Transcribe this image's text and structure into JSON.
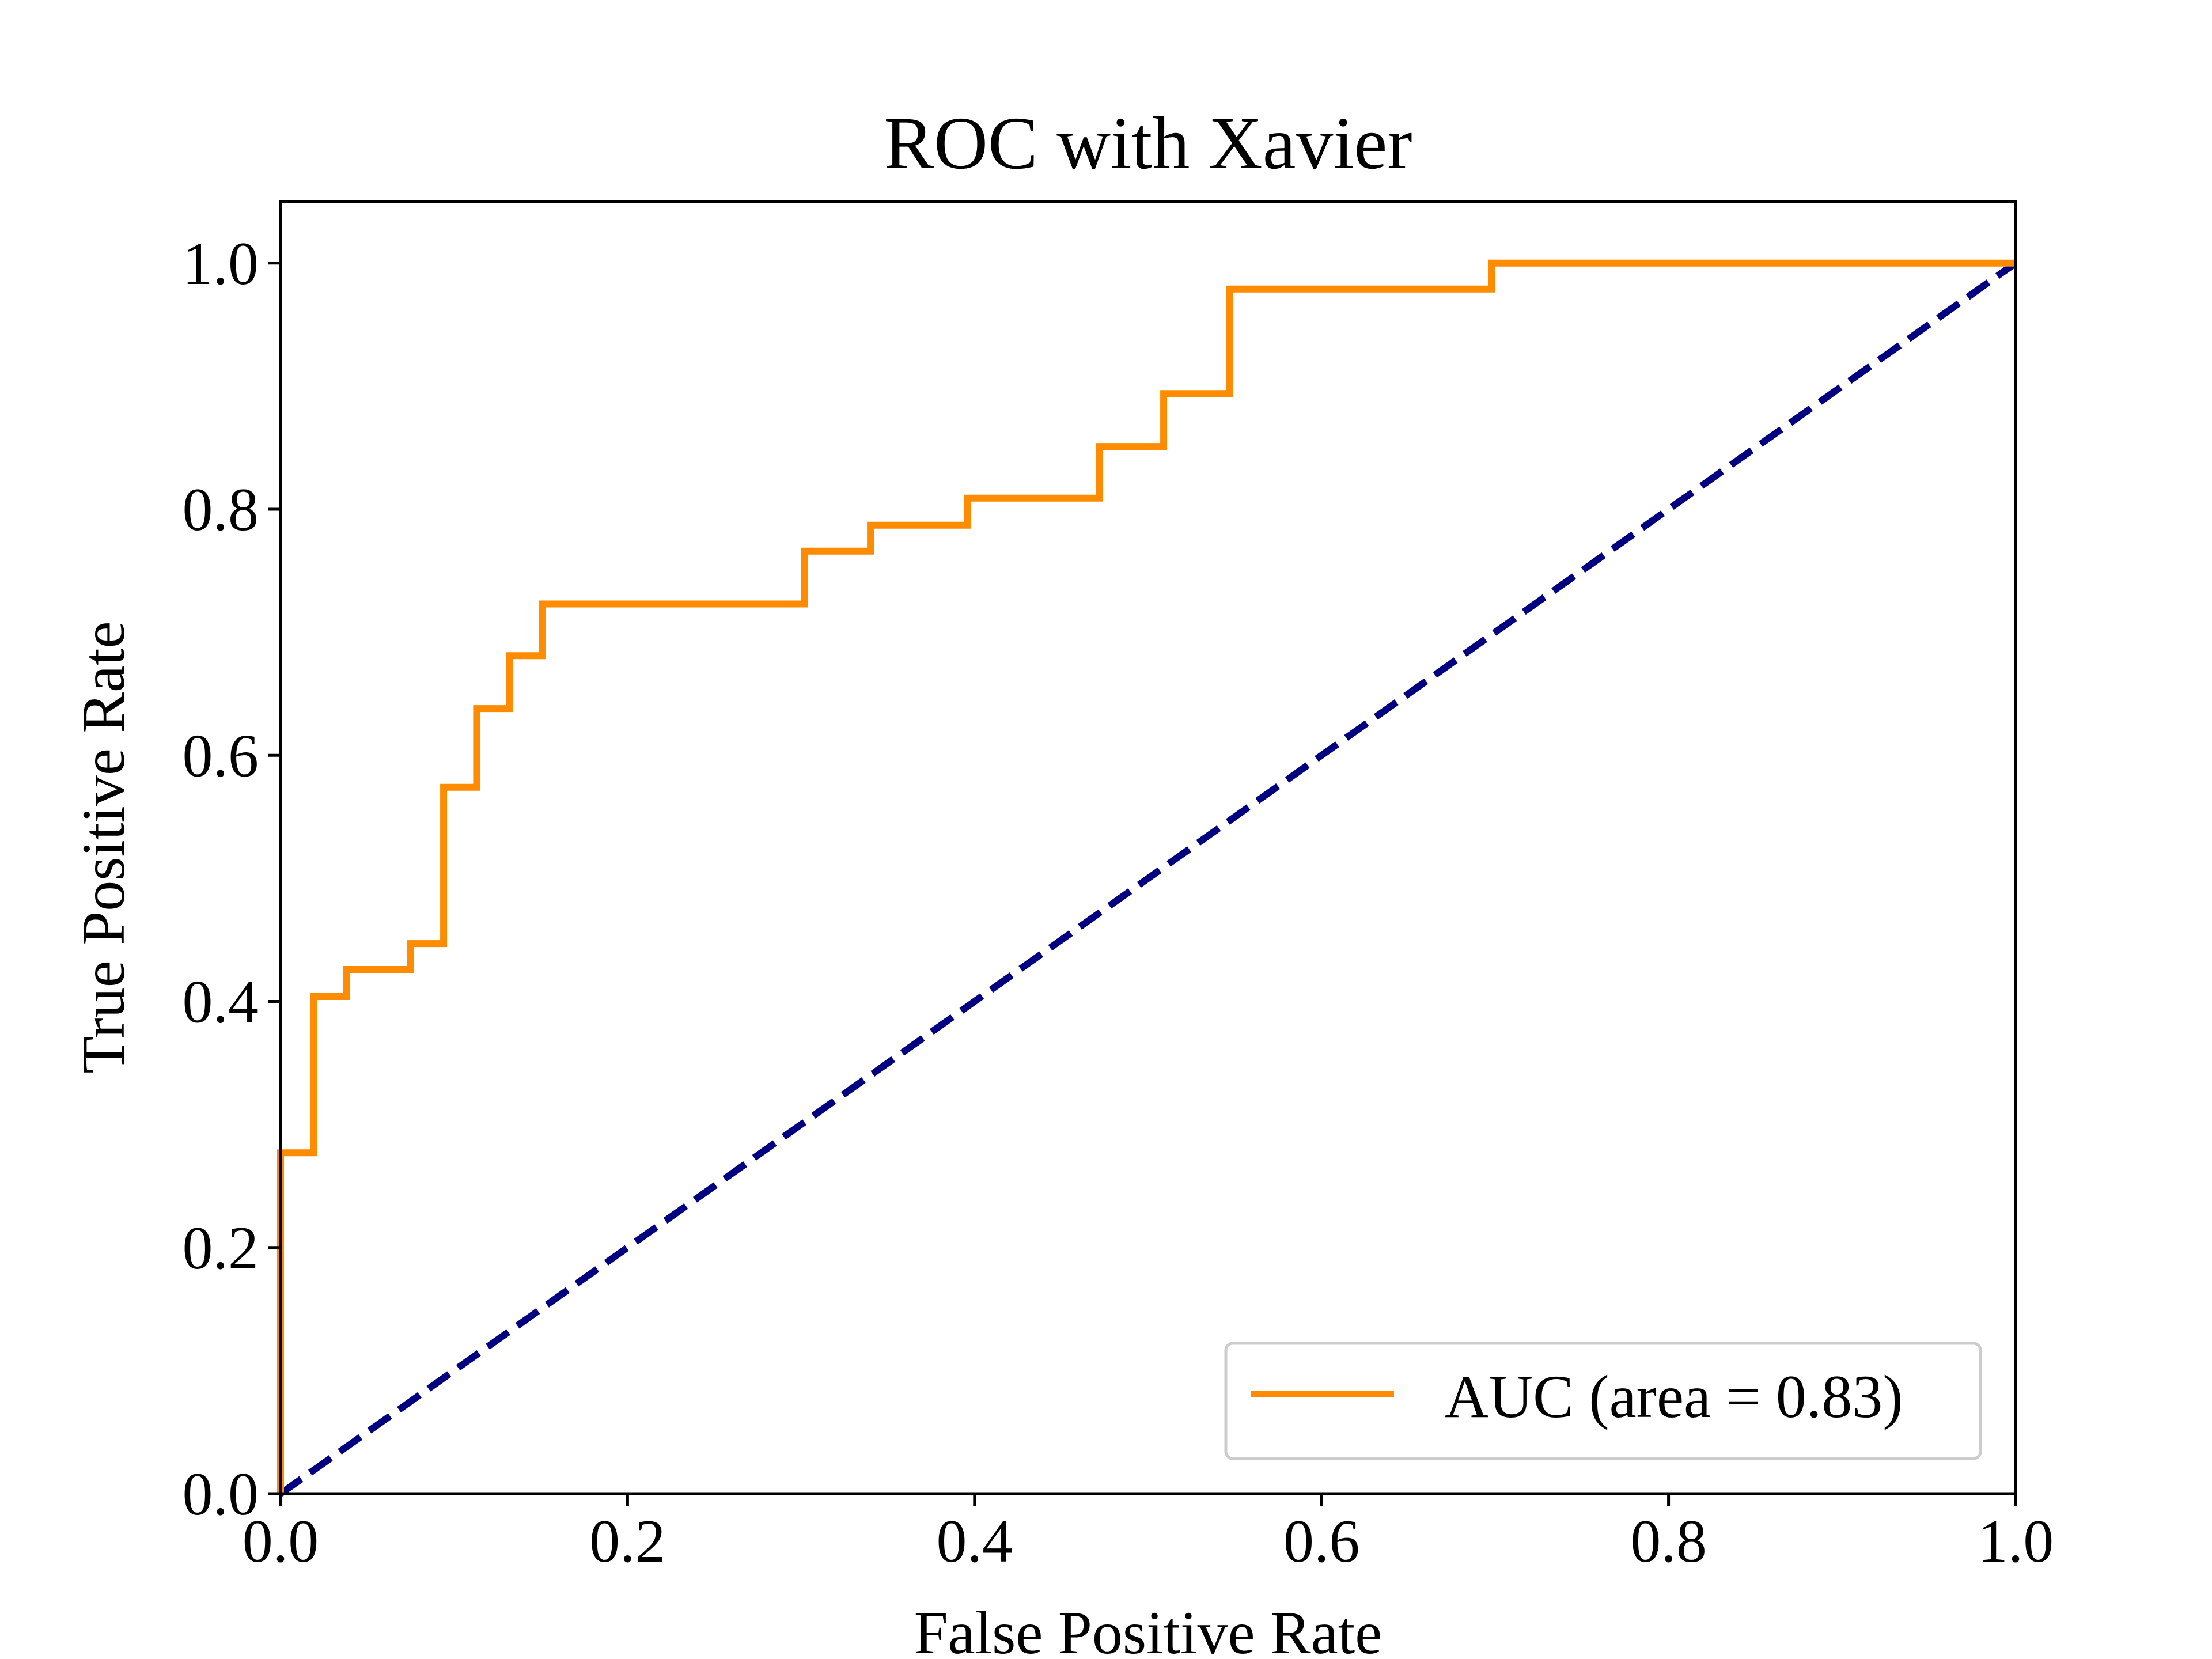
{
  "chart_data": {
    "type": "line",
    "title": "ROC with Xavier",
    "xlabel": "False Positive Rate",
    "ylabel": "True Positive Rate",
    "xlim": [
      0.0,
      1.0
    ],
    "ylim": [
      0.0,
      1.05
    ],
    "xticks": [
      "0.0",
      "0.2",
      "0.4",
      "0.6",
      "0.8",
      "1.0"
    ],
    "yticks": [
      "0.0",
      "0.2",
      "0.4",
      "0.6",
      "0.8",
      "1.0"
    ],
    "grid": false,
    "legend_position": "lower-right",
    "series": [
      {
        "name": "AUC (area = 0.83)",
        "color": "#ff8c00",
        "line_style": "solid",
        "x": [
          0.0,
          0.0,
          0.019,
          0.019,
          0.038,
          0.038,
          0.075,
          0.075,
          0.094,
          0.094,
          0.113,
          0.113,
          0.132,
          0.132,
          0.151,
          0.151,
          0.302,
          0.302,
          0.34,
          0.34,
          0.396,
          0.396,
          0.472,
          0.472,
          0.509,
          0.509,
          0.547,
          0.547,
          0.698,
          0.698,
          1.0
        ],
        "y": [
          0.0,
          0.277,
          0.277,
          0.404,
          0.404,
          0.426,
          0.426,
          0.447,
          0.447,
          0.574,
          0.574,
          0.638,
          0.638,
          0.681,
          0.681,
          0.723,
          0.723,
          0.766,
          0.766,
          0.787,
          0.787,
          0.809,
          0.809,
          0.851,
          0.851,
          0.894,
          0.894,
          0.979,
          0.979,
          1.0,
          1.0
        ]
      },
      {
        "color": "#000080",
        "line_style": "dashed",
        "x": [
          0.0,
          1.0
        ],
        "y": [
          0.0,
          1.0
        ]
      }
    ]
  }
}
